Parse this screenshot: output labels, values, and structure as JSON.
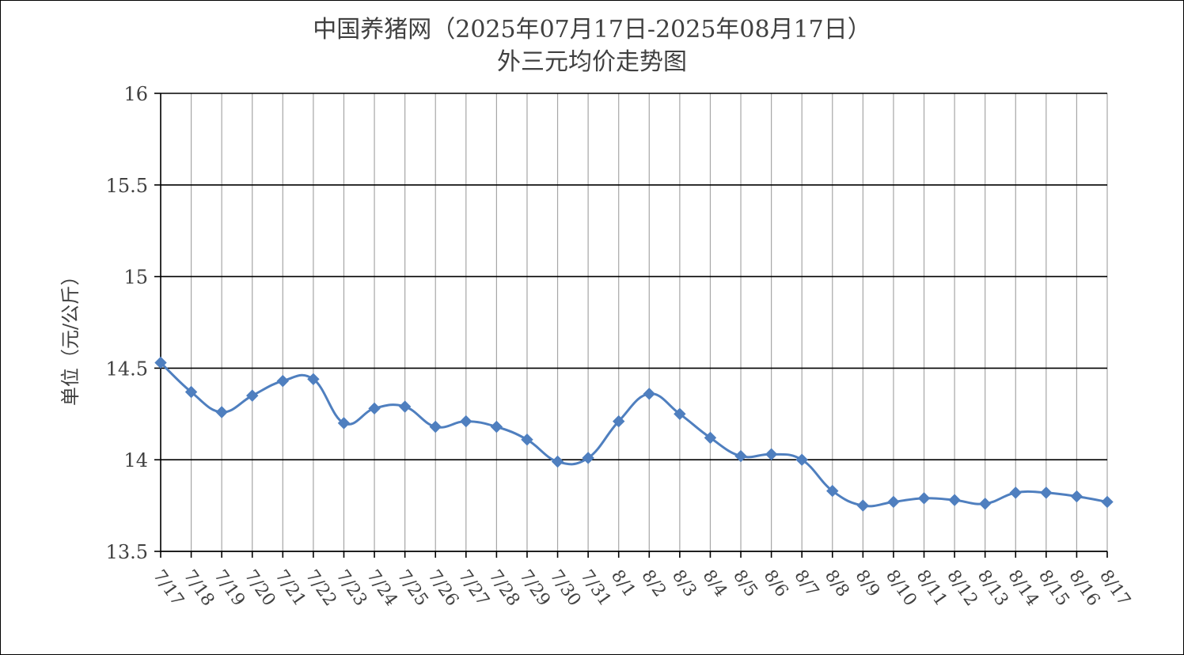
{
  "chart_data": {
    "type": "line",
    "title_lines": [
      "中国养猪网（2025年07月17日-2025年08月17日）",
      "外三元均价走势图"
    ],
    "ylabel": "单位（元/公斤）",
    "xlabel": "",
    "ylim": [
      13.5,
      16
    ],
    "yticks": [
      13.5,
      14,
      14.5,
      15,
      15.5,
      16
    ],
    "ytick_labels": [
      "13.5",
      "14",
      "14.5",
      "15",
      "15.5",
      "16"
    ],
    "grid": true,
    "legend": "none",
    "color": "#4f7fbf",
    "categories": [
      "7/17",
      "7/18",
      "7/19",
      "7/20",
      "7/21",
      "7/22",
      "7/23",
      "7/24",
      "7/25",
      "7/26",
      "7/27",
      "7/28",
      "7/29",
      "7/30",
      "7/31",
      "8/1",
      "8/2",
      "8/3",
      "8/4",
      "8/5",
      "8/6",
      "8/7",
      "8/8",
      "8/9",
      "8/10",
      "8/11",
      "8/12",
      "8/13",
      "8/14",
      "8/15",
      "8/16",
      "8/17"
    ],
    "series": [
      {
        "values": [
          14.53,
          14.37,
          14.26,
          14.35,
          14.43,
          14.44,
          14.2,
          14.28,
          14.29,
          14.18,
          14.21,
          14.18,
          14.11,
          13.99,
          14.01,
          14.21,
          14.36,
          14.25,
          14.12,
          14.02,
          14.03,
          14.0,
          13.83,
          13.75,
          13.77,
          13.79,
          13.78,
          13.76,
          13.82,
          13.82,
          13.8,
          13.77
        ]
      }
    ]
  }
}
